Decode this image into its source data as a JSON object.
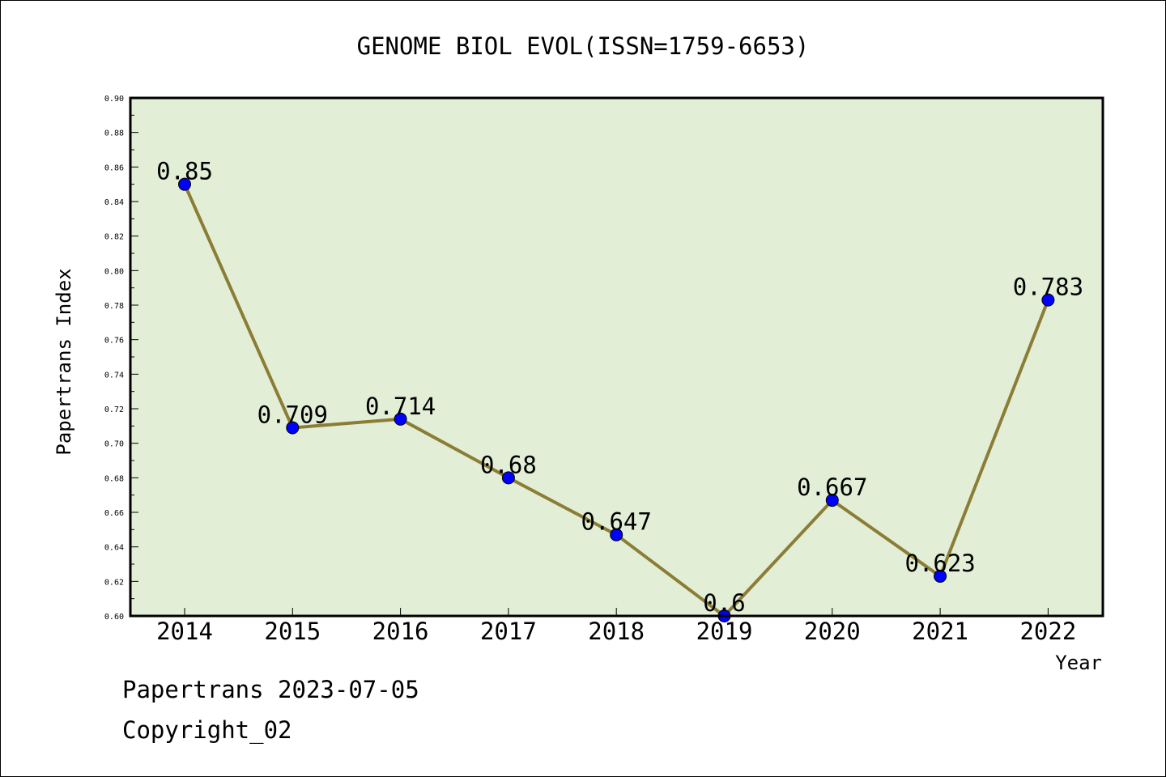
{
  "chart_data": {
    "type": "line",
    "title": "GENOME BIOL EVOL(ISSN=1759-6653)",
    "xlabel": "Year",
    "ylabel": "Papertrans Index",
    "categories": [
      "2014",
      "2015",
      "2016",
      "2017",
      "2018",
      "2019",
      "2020",
      "2021",
      "2022"
    ],
    "series": [
      {
        "values": [
          0.85,
          0.709,
          0.714,
          0.68,
          0.647,
          0.6,
          0.667,
          0.623,
          0.783
        ]
      }
    ],
    "data_labels": [
      "0.85",
      "0.709",
      "0.714",
      "0.68",
      "0.647",
      "0.6",
      "0.667",
      "0.623",
      "0.783"
    ],
    "ylim": [
      0.6,
      0.9
    ],
    "yticks": [
      "0.60",
      "0.62",
      "0.64",
      "0.66",
      "0.68",
      "0.70",
      "0.72",
      "0.74",
      "0.76",
      "0.78",
      "0.80",
      "0.82",
      "0.84",
      "0.86",
      "0.88",
      "0.90"
    ],
    "grid": false,
    "colors": {
      "plot_background": "#e2efd6",
      "line": "#8b7d35",
      "marker": "#0000ff"
    }
  },
  "footer": {
    "stamp": "Papertrans 2023-07-05",
    "copyright": "Copyright_02"
  }
}
